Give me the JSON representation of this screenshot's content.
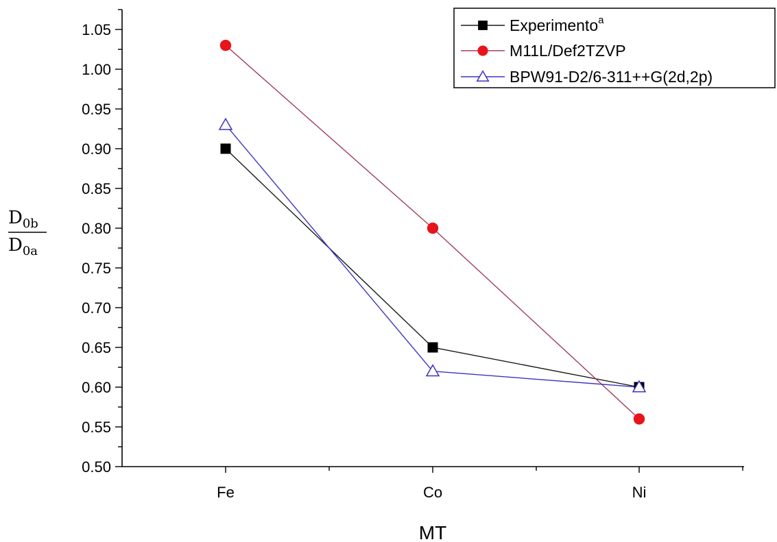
{
  "chart_data": {
    "type": "line",
    "xlabel": "MT",
    "ylabel": {
      "numerator": "D",
      "numerator_sub": "0b",
      "denominator": "D",
      "denominator_sub": "0a"
    },
    "categories": [
      "Fe",
      "Co",
      "Ni"
    ],
    "ylim": [
      0.5,
      1.075
    ],
    "yticks": [
      "0.50",
      "0.55",
      "0.60",
      "0.65",
      "0.70",
      "0.75",
      "0.80",
      "0.85",
      "0.90",
      "0.95",
      "1.00",
      "1.05"
    ],
    "legend_position": "top-right",
    "grid": false,
    "series": [
      {
        "name": "Experimento",
        "name_sup": "a",
        "values": [
          0.9,
          0.65,
          0.6
        ],
        "marker": "square",
        "marker_color": "#000000",
        "line_color": "#1a1a1a",
        "filled": true
      },
      {
        "name": "M11L/Def2TZVP",
        "values": [
          1.03,
          0.8,
          0.56
        ],
        "marker": "circle",
        "marker_color": "#e8141c",
        "line_color": "#9e4058",
        "filled": true
      },
      {
        "name": "BPW91-D2/6-311++G(2d,2p)",
        "values": [
          0.93,
          0.62,
          0.6
        ],
        "marker": "triangle",
        "marker_color": "#3a33c4",
        "line_color": "#3a33c4",
        "filled": false
      }
    ]
  }
}
